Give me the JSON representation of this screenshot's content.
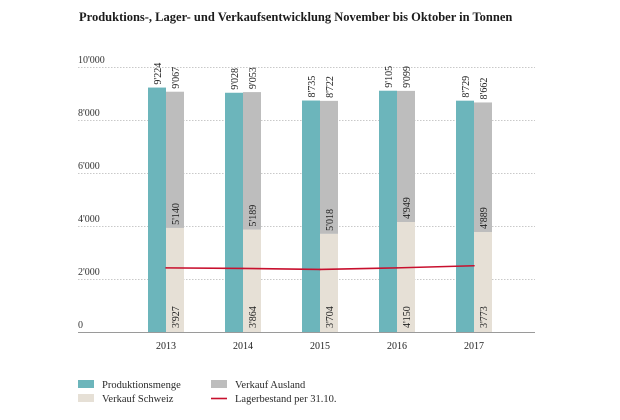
{
  "chart_data": {
    "type": "bar",
    "title": "Produktions-, Lager- und Verkaufsentwicklung November bis Oktober in Tonnen",
    "xlabel": "",
    "ylabel": "",
    "ylim": [
      0,
      10000
    ],
    "yticks": [
      0,
      2000,
      4000,
      6000,
      8000,
      10000
    ],
    "ytick_labels": [
      "0",
      "2'000",
      "4'000",
      "6'000",
      "8'000",
      "10'000"
    ],
    "grid": true,
    "categories": [
      "2013",
      "2014",
      "2015",
      "2016",
      "2017"
    ],
    "series": [
      {
        "name": "Produktionsmenge",
        "kind": "bar",
        "color": "#6cb5bb",
        "values": [
          9224,
          9028,
          8735,
          9105,
          8729
        ],
        "labels": [
          "9'224",
          "9'028",
          "8'735",
          "9'105",
          "8'729"
        ]
      },
      {
        "name": "Verkauf Schweiz",
        "kind": "stacked-bar-bottom",
        "color": "#e6e0d6",
        "values": [
          3927,
          3864,
          3704,
          4150,
          3773
        ],
        "labels": [
          "3'927",
          "3'864",
          "3'704",
          "4'150",
          "3'773"
        ]
      },
      {
        "name": "Verkauf Ausland",
        "kind": "stacked-bar-top",
        "color": "#bdbdbd",
        "values": [
          5140,
          5189,
          5018,
          4949,
          4889
        ],
        "labels": [
          "5'140",
          "5'189",
          "5'018",
          "4'949",
          "4'889"
        ],
        "total_labels": [
          "9'067",
          "9'053",
          "8'722",
          "9'099",
          "8'662"
        ]
      },
      {
        "name": "Lagerbestand per 31.10.",
        "kind": "line",
        "color": "#c8102e",
        "values": [
          2420,
          2400,
          2360,
          2420,
          2500
        ]
      }
    ],
    "legend": {
      "placement": "bottom-left",
      "items": [
        {
          "label": "Produktionsmenge",
          "swatch": "box",
          "color": "#6cb5bb"
        },
        {
          "label": "Verkauf Ausland",
          "swatch": "box",
          "color": "#bdbdbd"
        },
        {
          "label": "Verkauf Schweiz",
          "swatch": "box",
          "color": "#e6e0d6"
        },
        {
          "label": "Lagerbestand per 31.10.",
          "swatch": "line",
          "color": "#c8102e"
        }
      ]
    }
  }
}
